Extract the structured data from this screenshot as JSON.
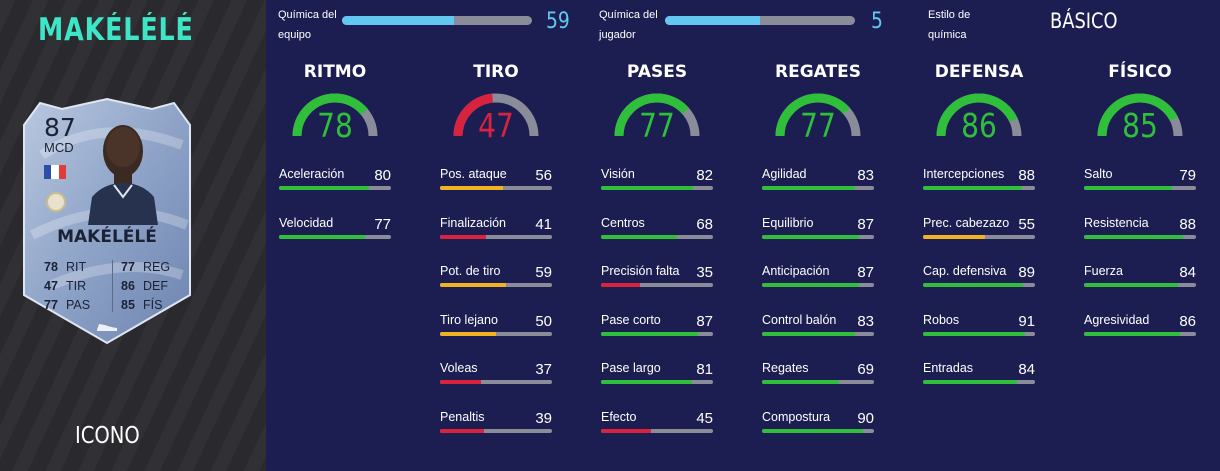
{
  "player": {
    "name": "MAKÉLÉLÉ",
    "card_type": "ICONO"
  },
  "card": {
    "rating": "87",
    "position": "MCD",
    "name": "MAKÉLÉLÉ",
    "stats_left": [
      {
        "value": "78",
        "label": "RIT"
      },
      {
        "value": "47",
        "label": "TIR"
      },
      {
        "value": "77",
        "label": "PAS"
      }
    ],
    "stats_right": [
      {
        "value": "77",
        "label": "REG"
      },
      {
        "value": "86",
        "label": "DEF"
      },
      {
        "value": "85",
        "label": "FÍS"
      }
    ]
  },
  "chemistry": {
    "team_label_1": "Química del",
    "team_label_2": "equipo",
    "team_value": "59",
    "team_fraction": 0.59,
    "player_label_1": "Química del",
    "player_label_2": "jugador",
    "player_value": "5",
    "player_fraction": 0.5,
    "style_label_1": "Estilo de",
    "style_label_2": "química",
    "style_value": "BÁSICO"
  },
  "colors": {
    "high": "#2fbf3a",
    "mid": "#f2b322",
    "low": "#d9233e",
    "track": "#8b8c9a",
    "chem": "#62c8f2",
    "accent": "#3ee6c8"
  },
  "categories": [
    {
      "title": "RITMO",
      "value": "78",
      "sub": [
        {
          "label": "Aceleración",
          "value": "80"
        },
        {
          "label": "Velocidad",
          "value": "77"
        }
      ]
    },
    {
      "title": "TIRO",
      "value": "47",
      "sub": [
        {
          "label": "Pos. ataque",
          "value": "56"
        },
        {
          "label": "Finalización",
          "value": "41"
        },
        {
          "label": "Pot. de tiro",
          "value": "59"
        },
        {
          "label": "Tiro lejano",
          "value": "50"
        },
        {
          "label": "Voleas",
          "value": "37"
        },
        {
          "label": "Penaltis",
          "value": "39"
        }
      ]
    },
    {
      "title": "PASES",
      "value": "77",
      "sub": [
        {
          "label": "Visión",
          "value": "82"
        },
        {
          "label": "Centros",
          "value": "68"
        },
        {
          "label": "Precisión falta",
          "value": "35"
        },
        {
          "label": "Pase corto",
          "value": "87"
        },
        {
          "label": "Pase largo",
          "value": "81"
        },
        {
          "label": "Efecto",
          "value": "45"
        }
      ]
    },
    {
      "title": "REGATES",
      "value": "77",
      "sub": [
        {
          "label": "Agilidad",
          "value": "83"
        },
        {
          "label": "Equilibrio",
          "value": "87"
        },
        {
          "label": "Anticipación",
          "value": "87"
        },
        {
          "label": "Control balón",
          "value": "83"
        },
        {
          "label": "Regates",
          "value": "69"
        },
        {
          "label": "Compostura",
          "value": "90"
        }
      ]
    },
    {
      "title": "DEFENSA",
      "value": "86",
      "sub": [
        {
          "label": "Intercepciones",
          "value": "88"
        },
        {
          "label": "Prec. cabezazo",
          "value": "55"
        },
        {
          "label": "Cap. defensiva",
          "value": "89"
        },
        {
          "label": "Robos",
          "value": "91"
        },
        {
          "label": "Entradas",
          "value": "84"
        }
      ]
    },
    {
      "title": "FÍSICO",
      "value": "85",
      "sub": [
        {
          "label": "Salto",
          "value": "79"
        },
        {
          "label": "Resistencia",
          "value": "88"
        },
        {
          "label": "Fuerza",
          "value": "84"
        },
        {
          "label": "Agresividad",
          "value": "86"
        }
      ]
    }
  ]
}
